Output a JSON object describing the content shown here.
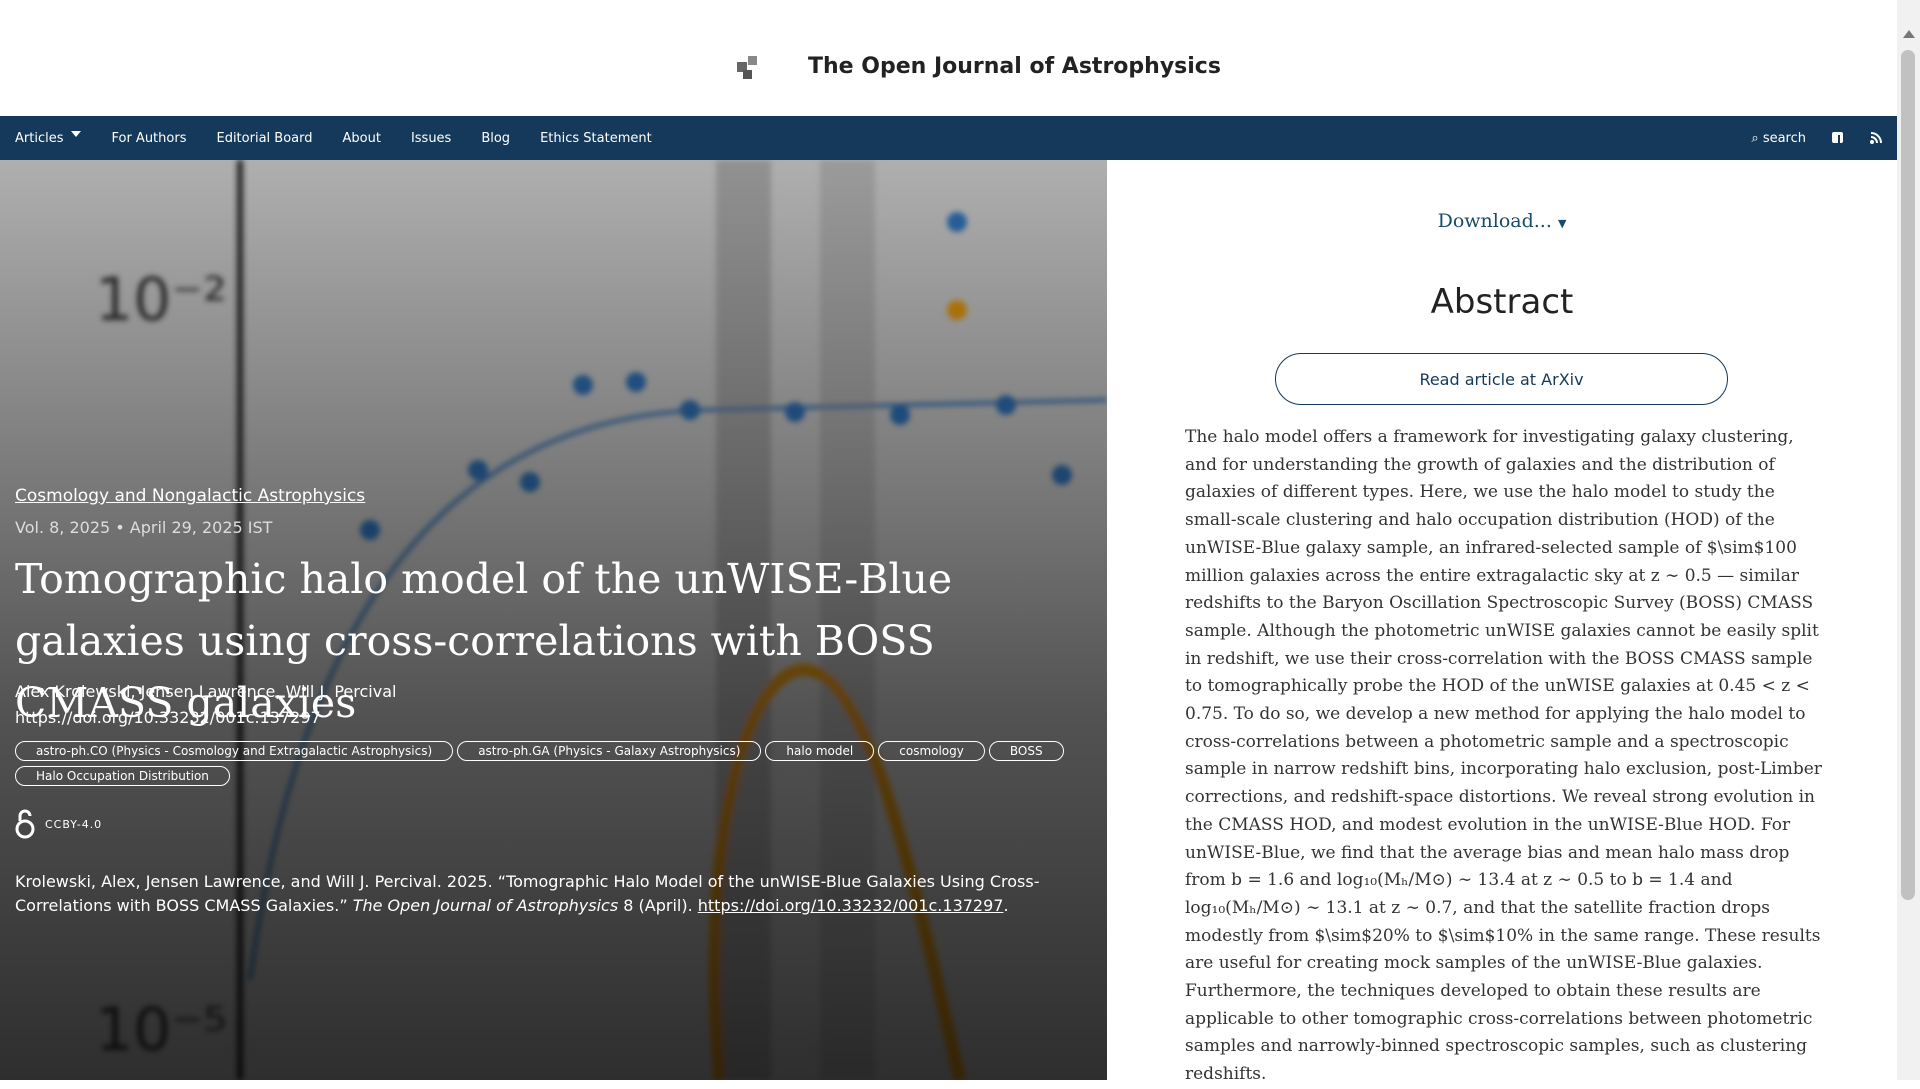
{
  "header": {
    "title": "The Open Journal of Astrophysics"
  },
  "nav": {
    "items": [
      "Articles",
      "For Authors",
      "Editorial Board",
      "About",
      "Issues",
      "Blog",
      "Ethics Statement"
    ],
    "search": "search"
  },
  "article": {
    "category": "Cosmology and Nongalactic Astrophysics",
    "meta": "Vol. 8, 2025 • April 29, 2025 IST",
    "title": "Tomographic halo model of the unWISE-Blue galaxies using cross-correlations with BOSS CMASS galaxies",
    "authors": "Alex Krolewski, Jensen Lawrence, Will J. Percival",
    "doi": "https://doi.org/10.33232/001c.137297",
    "tags": [
      "astro-ph.CO (Physics - Cosmology and Extragalactic Astrophysics)",
      "astro-ph.GA (Physics - Galaxy Astrophysics)",
      "halo model",
      "cosmology",
      "BOSS",
      "Halo Occupation Distribution"
    ],
    "license": "CCBY-4.0",
    "citation": {
      "pre": "Krolewski, Alex, Jensen Lawrence, and Will J. Percival. 2025. “Tomographic Halo Model of the unWISE-Blue Galaxies Using Cross-Correlations with BOSS CMASS Galaxies.” ",
      "journal": "The Open Journal of Astrophysics",
      "mid": " 8 (April). ",
      "link": "https://doi.org/10.33232/001c.137297",
      "post": "."
    }
  },
  "sidebar": {
    "download": "Download...",
    "heading": "Abstract",
    "button": "Read article at ArXiv",
    "abstract": "The halo model offers a framework for investigating galaxy clustering, and for understanding the growth of galaxies and the distribution of galaxies of different types. Here, we use the halo model to study the small-scale clustering and halo occupation distribution (HOD) of the unWISE-Blue galaxy sample, an infrared-selected sample of $\\sim$100 million galaxies across the entire extragalactic sky at z ∼ 0.5 — similar redshifts to the Baryon Oscillation Spectroscopic Survey (BOSS) CMASS sample. Although the photometric unWISE galaxies cannot be easily split in redshift, we use their cross-correlation with the BOSS CMASS sample to tomographically probe the HOD of the unWISE galaxies at 0.45 < z < 0.75. To do so, we develop a new method for applying the halo model to cross-correlations between a photometric sample and a spectroscopic sample in narrow redshift bins, incorporating halo exclusion, post-Limber corrections, and redshift-space distortions. We reveal strong evolution in the CMASS HOD, and modest evolution in the unWISE-Blue HOD. For unWISE-Blue, we find that the average bias and mean halo mass drop from b = 1.6 and log₁₀(Mₕ/M⊙) ∼ 13.4 at z ∼ 0.5 to b = 1.4 and log₁₀(Mₕ/M⊙) ∼ 13.1 at z ∼ 0.7, and that the satellite fraction drops modestly from $\\sim$20% to $\\sim$10% in the same range. These results are useful for creating mock samples of the unWISE-Blue galaxies. Furthermore, the techniques developed to obtain these results are applicable to other tomographic cross-correlations between photometric samples and narrowly-binned spectroscopic samples, such as clustering redshifts."
  }
}
